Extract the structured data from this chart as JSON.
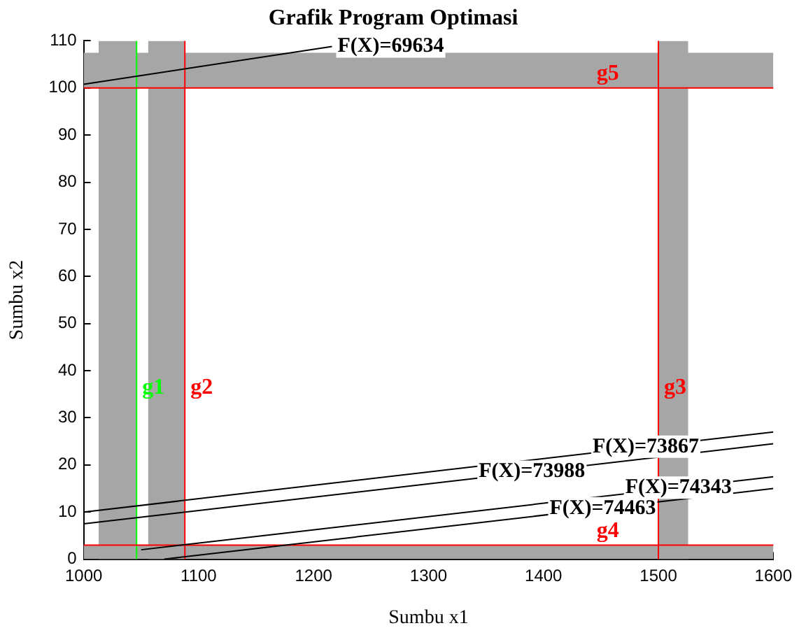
{
  "chart_data": {
    "type": "line",
    "title": "Grafik Program Optimasi",
    "xlabel": "Sumbu x1",
    "ylabel": "Sumbu x2",
    "xlim": [
      1000,
      1600
    ],
    "xticks": [
      1000,
      1100,
      1200,
      1300,
      1400,
      1500,
      1600
    ],
    "ylim": [
      0,
      110
    ],
    "yticks": [
      0,
      10,
      20,
      30,
      40,
      50,
      60,
      70,
      80,
      90,
      100,
      110
    ],
    "grid": false,
    "legend": false,
    "marker": "none",
    "line_style": "solid",
    "series": [
      {
        "name": "F(X)=69634",
        "color": "#000000",
        "x": [
          1000,
          1216
        ],
        "values": [
          100.8,
          108.8
        ]
      },
      {
        "name": "F(X)=73867",
        "color": "#000000",
        "x": [
          1000,
          1600
        ],
        "values": [
          10,
          27
        ]
      },
      {
        "name": "F(X)=73988",
        "color": "#000000",
        "x": [
          1000,
          1600
        ],
        "values": [
          7.5,
          24.5
        ]
      },
      {
        "name": "F(X)=74343",
        "color": "#000000",
        "x": [
          1050,
          1600
        ],
        "values": [
          2,
          17.5
        ]
      },
      {
        "name": "F(X)=74463",
        "color": "#000000",
        "x": [
          1070,
          1600
        ],
        "values": [
          0,
          15
        ]
      }
    ],
    "ref_lines": [
      {
        "axis": "x",
        "value": 1046,
        "label": "g1",
        "color": "#00ff00"
      },
      {
        "axis": "x",
        "value": 1088,
        "label": "g2",
        "color": "#ff0000"
      },
      {
        "axis": "x",
        "value": 1500,
        "label": "g3",
        "color": "#ff0000"
      },
      {
        "axis": "y",
        "value": 3,
        "label": "g4",
        "color": "#ff0000"
      },
      {
        "axis": "y",
        "value": 100,
        "label": "g5",
        "color": "#ff0000"
      }
    ],
    "bands": [
      {
        "axis": "x",
        "from": 1013,
        "to": 1046,
        "color": "#a6a6a6"
      },
      {
        "axis": "x",
        "from": 1056,
        "to": 1088,
        "color": "#a6a6a6"
      },
      {
        "axis": "x",
        "from": 1500,
        "to": 1526,
        "color": "#a6a6a6"
      },
      {
        "axis": "y",
        "from": 0,
        "to": 3,
        "color": "#a6a6a6"
      },
      {
        "axis": "y",
        "from": 100,
        "to": 107.5,
        "color": "#a6a6a6"
      }
    ]
  }
}
